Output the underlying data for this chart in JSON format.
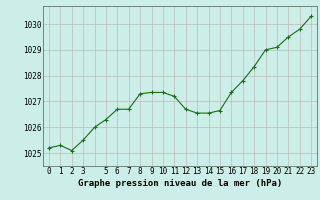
{
  "x": [
    0,
    1,
    2,
    3,
    4,
    5,
    6,
    7,
    8,
    9,
    10,
    11,
    12,
    13,
    14,
    15,
    16,
    17,
    18,
    19,
    20,
    21,
    22,
    23
  ],
  "y": [
    1025.2,
    1025.3,
    1025.1,
    1025.5,
    1026.0,
    1026.3,
    1026.7,
    1026.7,
    1027.3,
    1027.35,
    1027.35,
    1027.2,
    1026.7,
    1026.55,
    1026.55,
    1026.65,
    1027.35,
    1027.8,
    1028.35,
    1029.0,
    1029.1,
    1029.5,
    1029.8,
    1030.3
  ],
  "xtick_labels": [
    "0",
    "1",
    "2",
    "3",
    "",
    "5",
    "6",
    "7",
    "8",
    "9",
    "10",
    "11",
    "12",
    "13",
    "14",
    "15",
    "16",
    "17",
    "18",
    "19",
    "20",
    "21",
    "22",
    "23"
  ],
  "line_color": "#1a6b1a",
  "marker": "+",
  "marker_size": 3,
  "bg_color": "#cceee8",
  "grid_color": "#bbbbbb",
  "xlabel": "Graphe pression niveau de la mer (hPa)",
  "ylabel_ticks": [
    1025,
    1026,
    1027,
    1028,
    1029,
    1030
  ],
  "xlim": [
    -0.5,
    23.5
  ],
  "ylim": [
    1024.5,
    1030.7
  ],
  "xlabel_fontsize": 6.5,
  "tick_fontsize": 5.5
}
